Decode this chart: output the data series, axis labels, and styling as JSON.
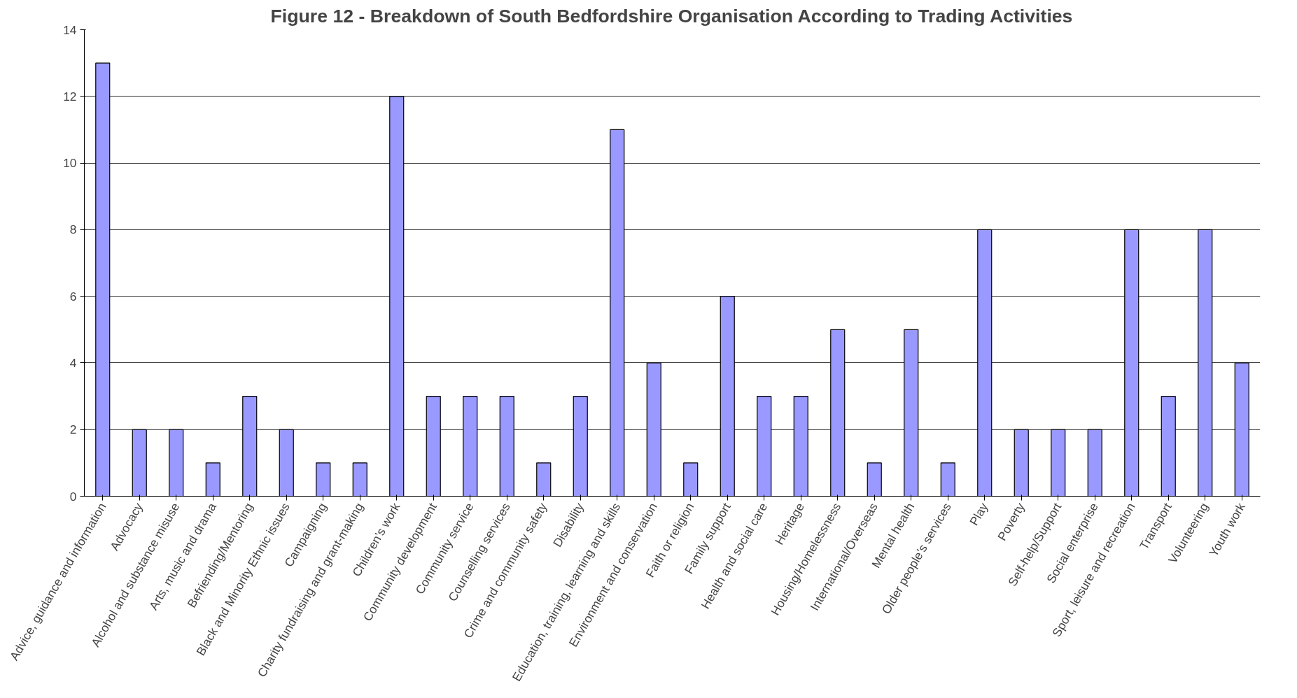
{
  "chart_data": {
    "type": "bar",
    "title": "Figure 12 - Breakdown of South Bedfordshire Organisation According to Trading Activities",
    "categories": [
      "Advice, guidance and information",
      "Advocacy",
      "Alcohol and substance misuse",
      "Arts, music and drama",
      "Befriending/Mentoring",
      "Black and Minority Ethnic issues",
      "Campaigning",
      "Charity fundraising and grant-making",
      "Children’s work",
      "Community development",
      "Community service",
      "Counselling services",
      "Crime and community safety",
      "Disability",
      "Education, training, learning and skills",
      "Environment and conservation",
      "Faith or religion",
      "Family support",
      "Health and social care",
      "Heritage",
      "Housing/Homelessness",
      "International/Overseas",
      "Mental health",
      "Older people’s services",
      "Play",
      "Poverty",
      "Self-help/Support",
      "Social enterprise",
      "Sport, leisure and recreation",
      "Transport",
      "Volunteering",
      "Youth work"
    ],
    "values": [
      13,
      2,
      2,
      1,
      3,
      2,
      1,
      1,
      12,
      3,
      3,
      3,
      1,
      3,
      11,
      4,
      1,
      6,
      3,
      3,
      5,
      1,
      5,
      1,
      8,
      2,
      2,
      2,
      8,
      3,
      8,
      4
    ],
    "color": "#9999ff",
    "ylim": [
      0,
      14
    ],
    "yticks": [
      0,
      2,
      4,
      6,
      8,
      10,
      12,
      14
    ],
    "grid": "y"
  }
}
